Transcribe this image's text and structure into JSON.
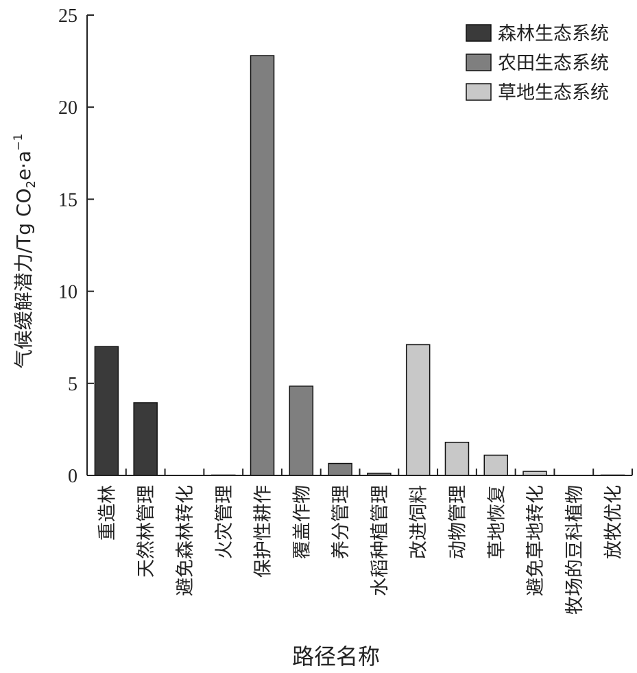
{
  "chart_data": {
    "type": "bar",
    "categories": [
      "重造林",
      "天然林管理",
      "避免森林转化",
      "火灾管理",
      "保护性耕作",
      "覆盖作物",
      "养分管理",
      "水稻种植管理",
      "改进饲料",
      "动物管理",
      "草地恢复",
      "避免草地转化",
      "牧场的豆科植物",
      "放牧优化"
    ],
    "values": [
      7.0,
      3.95,
      0,
      0.02,
      22.8,
      4.85,
      0.65,
      0.12,
      7.1,
      1.8,
      1.1,
      0.22,
      0,
      0.02
    ],
    "category_group": [
      0,
      0,
      0,
      0,
      1,
      1,
      1,
      1,
      2,
      2,
      2,
      2,
      2,
      2
    ],
    "series": [
      {
        "name": "森林生态系统",
        "color": "#3a3a3a"
      },
      {
        "name": "农田生态系统",
        "color": "#7f7f7f"
      },
      {
        "name": "草地生态系统",
        "color": "#c8c8c8"
      }
    ],
    "xlabel": "路径名称",
    "ylabel_main": "气候缓解潜力/Tg CO",
    "ylabel_sub": "2",
    "ylabel_tail": "e·a",
    "ylabel_sup": "−1",
    "ylim": [
      0,
      25
    ],
    "yticks": [
      "0",
      "5",
      "10",
      "15",
      "20",
      "25"
    ],
    "legend_position": "top-right",
    "grid": false
  }
}
